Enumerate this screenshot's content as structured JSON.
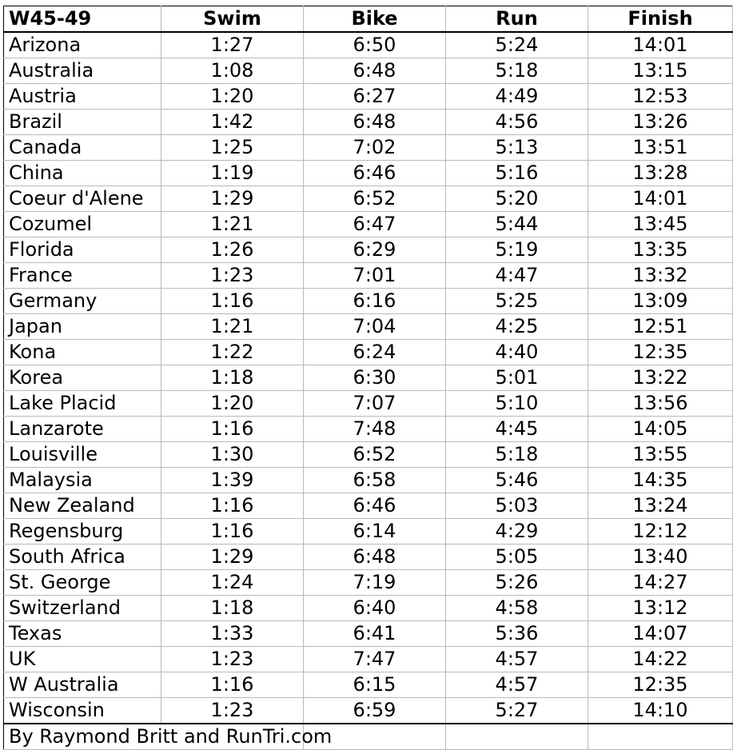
{
  "columns": [
    "W45-49",
    "Swim",
    "Bike",
    "Run",
    "Finish"
  ],
  "rows": [
    [
      "Arizona",
      "1:27",
      "6:50",
      "5:24",
      "14:01"
    ],
    [
      "Australia",
      "1:08",
      "6:48",
      "5:18",
      "13:15"
    ],
    [
      "Austria",
      "1:20",
      "6:27",
      "4:49",
      "12:53"
    ],
    [
      "Brazil",
      "1:42",
      "6:48",
      "4:56",
      "13:26"
    ],
    [
      "Canada",
      "1:25",
      "7:02",
      "5:13",
      "13:51"
    ],
    [
      "China",
      "1:19",
      "6:46",
      "5:16",
      "13:28"
    ],
    [
      "Coeur d'Alene",
      "1:29",
      "6:52",
      "5:20",
      "14:01"
    ],
    [
      "Cozumel",
      "1:21",
      "6:47",
      "5:44",
      "13:45"
    ],
    [
      "Florida",
      "1:26",
      "6:29",
      "5:19",
      "13:35"
    ],
    [
      "France",
      "1:23",
      "7:01",
      "4:47",
      "13:32"
    ],
    [
      "Germany",
      "1:16",
      "6:16",
      "5:25",
      "13:09"
    ],
    [
      "Japan",
      "1:21",
      "7:04",
      "4:25",
      "12:51"
    ],
    [
      "Kona",
      "1:22",
      "6:24",
      "4:40",
      "12:35"
    ],
    [
      "Korea",
      "1:18",
      "6:30",
      "5:01",
      "13:22"
    ],
    [
      "Lake Placid",
      "1:20",
      "7:07",
      "5:10",
      "13:56"
    ],
    [
      "Lanzarote",
      "1:16",
      "7:48",
      "4:45",
      "14:05"
    ],
    [
      "Louisville",
      "1:30",
      "6:52",
      "5:18",
      "13:55"
    ],
    [
      "Malaysia",
      "1:39",
      "6:58",
      "5:46",
      "14:35"
    ],
    [
      "New Zealand",
      "1:16",
      "6:46",
      "5:03",
      "13:24"
    ],
    [
      "Regensburg",
      "1:16",
      "6:14",
      "4:29",
      "12:12"
    ],
    [
      "South Africa",
      "1:29",
      "6:48",
      "5:05",
      "13:40"
    ],
    [
      "St. George",
      "1:24",
      "7:19",
      "5:26",
      "14:27"
    ],
    [
      "Switzerland",
      "1:18",
      "6:40",
      "4:58",
      "13:12"
    ],
    [
      "Texas",
      "1:33",
      "6:41",
      "5:36",
      "14:07"
    ],
    [
      "UK",
      "1:23",
      "7:47",
      "4:57",
      "14:22"
    ],
    [
      "W Australia",
      "1:16",
      "6:15",
      "4:57",
      "12:35"
    ],
    [
      "Wisconsin",
      "1:23",
      "6:59",
      "5:27",
      "14:10"
    ]
  ],
  "footer": "By Raymond Britt and RunTri.com"
}
